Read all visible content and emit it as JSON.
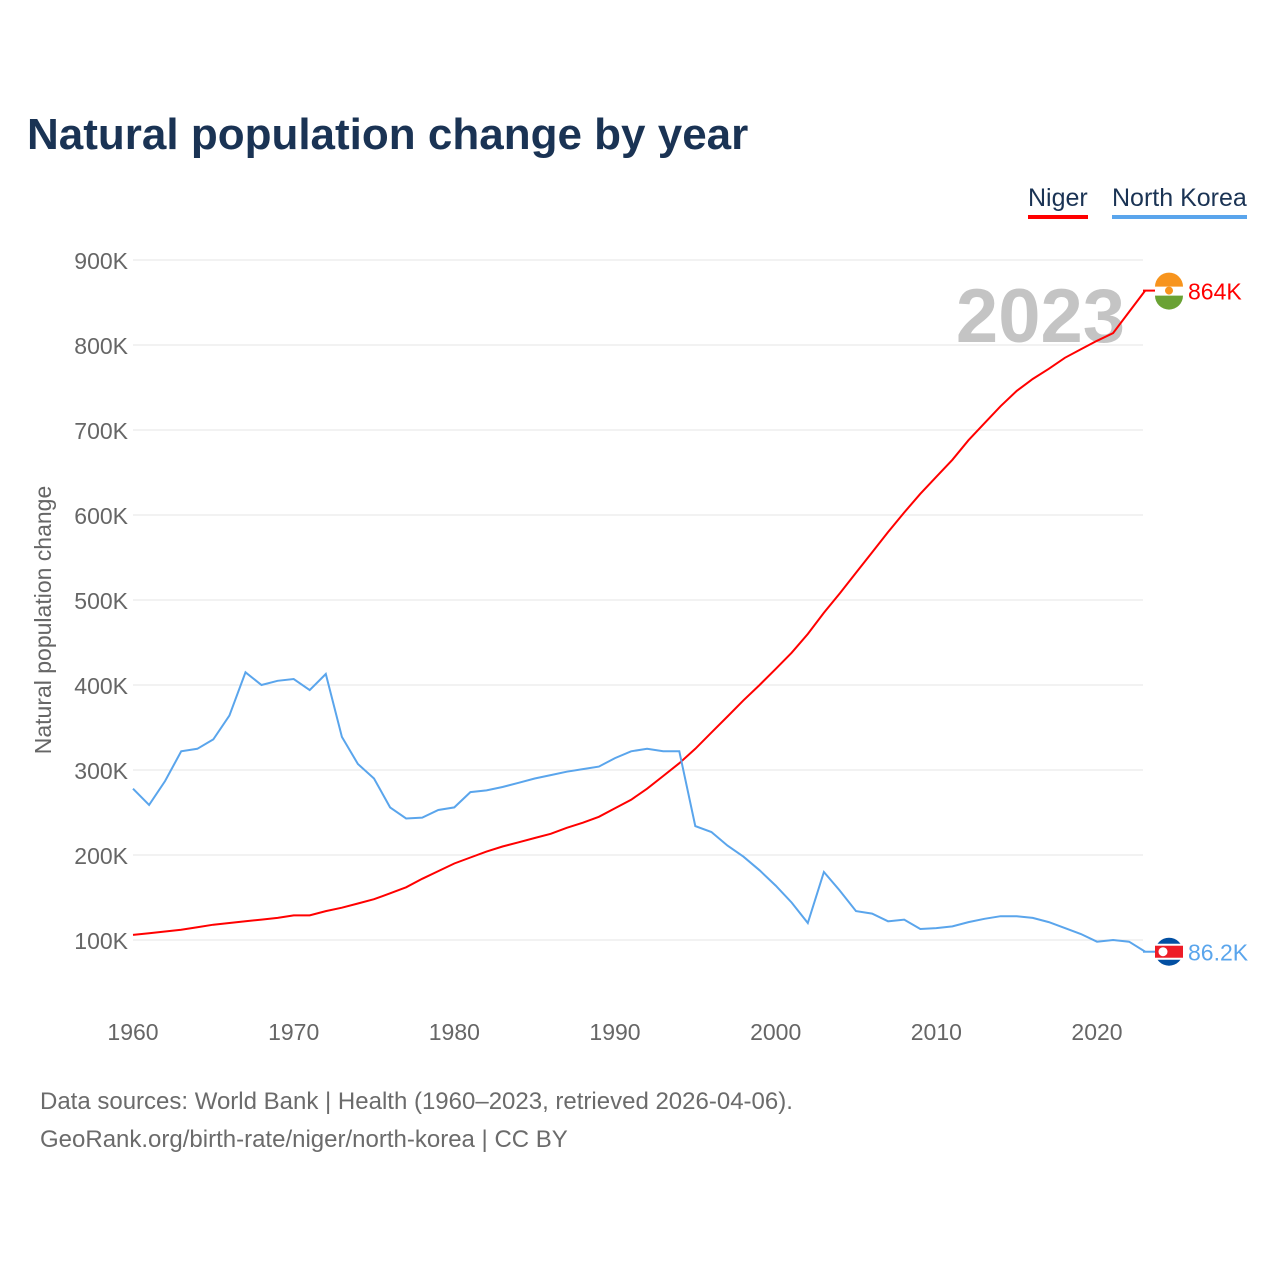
{
  "title": "Natural population change by year",
  "sources": [
    "Data sources: World Bank | Health (1960–2023, retrieved 2026-04-06).",
    "GeoRank.org/birth-rate/niger/north-korea | CC BY"
  ],
  "chart_data": {
    "type": "line",
    "title": "Natural population change by year",
    "ylabel": "Natural population change",
    "xlabel": "",
    "xlim": [
      1960,
      2023
    ],
    "ylim": [
      0,
      900000
    ],
    "yticks": [
      100000,
      200000,
      300000,
      400000,
      500000,
      600000,
      700000,
      800000,
      900000
    ],
    "ytick_labels": [
      "100K",
      "200K",
      "300K",
      "400K",
      "500K",
      "600K",
      "700K",
      "800K",
      "900K"
    ],
    "xticks": [
      1960,
      1970,
      1980,
      1990,
      2000,
      2010,
      2020
    ],
    "xtick_labels": [
      "1960",
      "1970",
      "1980",
      "1990",
      "2000",
      "2010",
      "2020"
    ],
    "year_watermark": "2023",
    "legend_placement": "top-right",
    "x": [
      1960,
      1961,
      1962,
      1963,
      1964,
      1965,
      1966,
      1967,
      1968,
      1969,
      1970,
      1971,
      1972,
      1973,
      1974,
      1975,
      1976,
      1977,
      1978,
      1979,
      1980,
      1981,
      1982,
      1983,
      1984,
      1985,
      1986,
      1987,
      1988,
      1989,
      1990,
      1991,
      1992,
      1993,
      1994,
      1995,
      1996,
      1997,
      1998,
      1999,
      2000,
      2001,
      2002,
      2003,
      2004,
      2005,
      2006,
      2007,
      2008,
      2009,
      2010,
      2011,
      2012,
      2013,
      2014,
      2015,
      2016,
      2017,
      2018,
      2019,
      2020,
      2021,
      2022,
      2023
    ],
    "series": [
      {
        "name": "Niger",
        "color": "#ff0000",
        "end_label": "864K",
        "values": [
          106000,
          108000,
          110000,
          112000,
          115000,
          118000,
          120000,
          122000,
          124000,
          126000,
          129000,
          129000,
          134000,
          138000,
          143000,
          148000,
          155000,
          162000,
          172000,
          181000,
          190000,
          197000,
          204000,
          210000,
          215000,
          220000,
          225000,
          232000,
          238000,
          245000,
          255000,
          265000,
          278000,
          293000,
          308000,
          325000,
          344000,
          363000,
          382000,
          400000,
          419000,
          438000,
          460000,
          485000,
          508000,
          532000,
          556000,
          580000,
          603000,
          625000,
          645000,
          665000,
          688000,
          708000,
          728000,
          746000,
          760000,
          772000,
          785000,
          795000,
          805000,
          814000,
          839000,
          864000
        ]
      },
      {
        "name": "North Korea",
        "color": "#5aa5ec",
        "end_label": "86.2K",
        "values": [
          278000,
          259000,
          287000,
          322000,
          325000,
          336000,
          364000,
          415000,
          400000,
          405000,
          407000,
          394000,
          413000,
          339000,
          307000,
          290000,
          256000,
          243000,
          244000,
          253000,
          256000,
          274000,
          276000,
          280000,
          285000,
          290000,
          294000,
          298000,
          301000,
          304000,
          314000,
          322000,
          325000,
          322000,
          322000,
          234000,
          227000,
          211000,
          198000,
          182000,
          164000,
          144000,
          120000,
          180000,
          158000,
          134000,
          131000,
          122000,
          124000,
          113000,
          114000,
          116000,
          121000,
          125000,
          128000,
          128000,
          126000,
          121000,
          114000,
          107000,
          98000,
          100000,
          98000,
          86200
        ]
      }
    ]
  }
}
